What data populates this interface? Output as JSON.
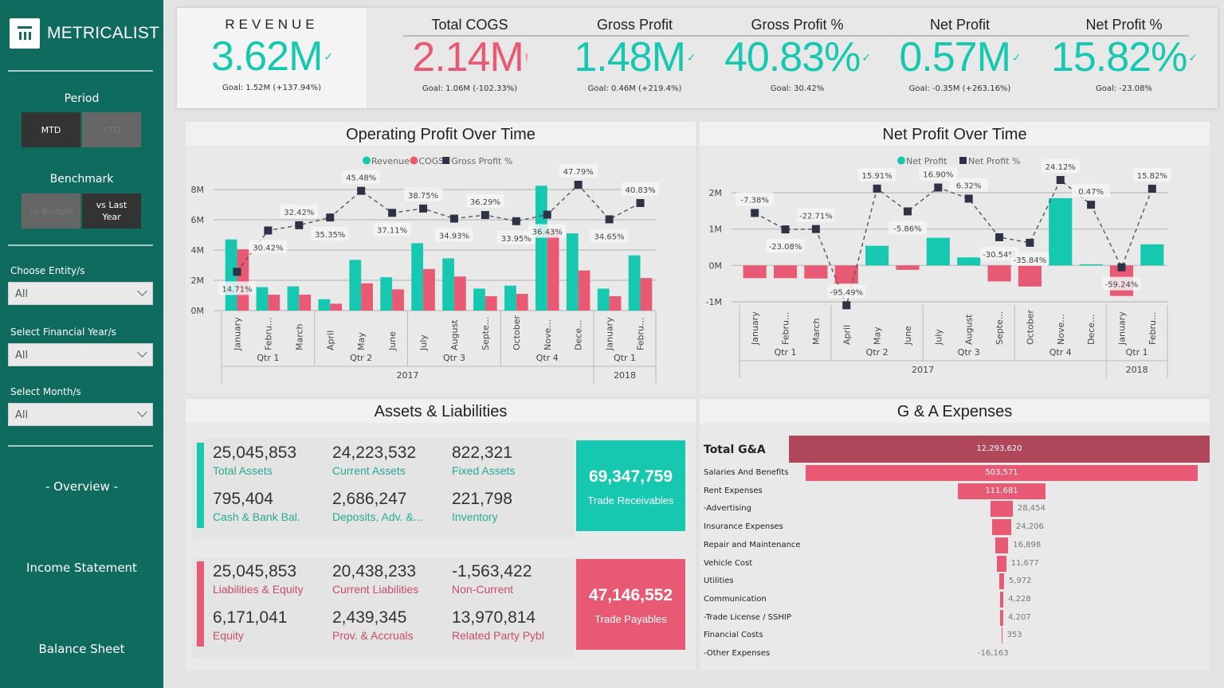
{
  "sidebar": {
    "logo_text": "METRICALIST",
    "period_label": "Period",
    "period_options": [
      "MTD",
      "YTD"
    ],
    "period_selected": "MTD",
    "benchmark_label": "Benchmark",
    "benchmark_options": [
      "vs Budget",
      "vs Last Year"
    ],
    "benchmark_selected": "vs Last Year",
    "filters": [
      {
        "label": "Choose Entity/s",
        "value": "All"
      },
      {
        "label": "Select Financial Year/s",
        "value": "All"
      },
      {
        "label": "Select Month/s",
        "value": "All"
      }
    ],
    "nav": [
      "- Overview -",
      "Income Statement",
      "Balance Sheet"
    ]
  },
  "colors": {
    "sidebar": "#0e6b5e",
    "positive": "#17c8b0",
    "negative": "#e85a74",
    "total": "#b0475a",
    "line": "#2e3245"
  },
  "kpis": [
    {
      "title": "REVENUE",
      "value": "3.62M",
      "icon": "check",
      "goal": "Goal: 1.52M (+137.94%)",
      "status": "good"
    },
    {
      "title": "Total COGS",
      "value": "2.14M",
      "icon": "exclamation",
      "goal": "Goal: 1.06M (-102.33%)",
      "status": "bad"
    },
    {
      "title": "Gross Profit",
      "value": "1.48M",
      "icon": "check",
      "goal": "Goal: 0.46M (+219.4%)",
      "status": "good"
    },
    {
      "title": "Gross Profit %",
      "value": "40.83%",
      "icon": "check",
      "goal": "Goal: 30.42%",
      "status": "good"
    },
    {
      "title": "Net Profit",
      "value": "0.57M",
      "icon": "check",
      "goal": "Goal: -0.35M (+263.16%)",
      "status": "good"
    },
    {
      "title": "Net Profit %",
      "value": "15.82%",
      "icon": "check",
      "goal": "Goal: -23.08%",
      "status": "good"
    }
  ],
  "chart_data": [
    {
      "type": "bar",
      "title": "Operating Profit Over Time",
      "legend": [
        "Revenue",
        "COGS",
        "Gross Profit %"
      ],
      "legend_position": "top",
      "categories": [
        "January",
        "Febru...",
        "March",
        "April",
        "May",
        "June",
        "July",
        "August",
        "Septe...",
        "October",
        "Nove...",
        "Dece...",
        "January",
        "Febru..."
      ],
      "quarters": [
        {
          "label": "Qtr 1",
          "span": 3
        },
        {
          "label": "Qtr 2",
          "span": 3
        },
        {
          "label": "Qtr 3",
          "span": 3
        },
        {
          "label": "Qtr 4",
          "span": 3
        },
        {
          "label": "Qtr 1",
          "span": 2
        }
      ],
      "years": [
        {
          "label": "2017",
          "span": 12
        },
        {
          "label": "2018",
          "span": 2
        }
      ],
      "yticks": [
        "0M",
        "2M",
        "4M",
        "6M",
        "8M"
      ],
      "ylim": [
        0,
        8
      ],
      "grid": true,
      "series": [
        {
          "name": "Revenue",
          "type": "bar",
          "values": [
            4.7,
            1.55,
            1.6,
            0.75,
            3.35,
            2.2,
            4.45,
            3.45,
            1.45,
            1.65,
            8.25,
            5.1,
            1.45,
            3.65
          ]
        },
        {
          "name": "COGS",
          "type": "bar",
          "values": [
            4.05,
            1.05,
            1.05,
            0.45,
            1.8,
            1.4,
            2.75,
            2.25,
            0.95,
            1.1,
            5.25,
            2.65,
            0.95,
            2.15
          ]
        },
        {
          "name": "Gross Profit %",
          "type": "line",
          "values": [
            14.71,
            30.42,
            32.42,
            35.35,
            45.48,
            37.11,
            38.75,
            34.93,
            36.29,
            33.95,
            36.43,
            47.79,
            34.65,
            40.83
          ],
          "labels": [
            "14.71%",
            "30.42%",
            "32.42%",
            "35.35%",
            "45.48%",
            "37.11%",
            "38.75%",
            "34.93%",
            "36.29%",
            "33.95%",
            "36.43%",
            "47.79%",
            "34.65%",
            "40.83%"
          ]
        }
      ]
    },
    {
      "type": "bar",
      "title": "Net Profit Over Time",
      "legend": [
        "Net Profit",
        "Net Profit %"
      ],
      "legend_position": "top",
      "categories": [
        "January",
        "Febru...",
        "March",
        "April",
        "May",
        "June",
        "July",
        "August",
        "Septe...",
        "October",
        "Nove...",
        "Dece...",
        "January",
        "Febru..."
      ],
      "quarters": [
        {
          "label": "Qtr 1",
          "span": 3
        },
        {
          "label": "Qtr 2",
          "span": 3
        },
        {
          "label": "Qtr 3",
          "span": 3
        },
        {
          "label": "Qtr 4",
          "span": 3
        },
        {
          "label": "Qtr 1",
          "span": 2
        }
      ],
      "years": [
        {
          "label": "2017",
          "span": 12
        },
        {
          "label": "2018",
          "span": 2
        }
      ],
      "yticks": [
        "-1M",
        "0M",
        "1M",
        "2M"
      ],
      "ylim": [
        -1,
        2
      ],
      "grid": true,
      "series": [
        {
          "name": "Net Profit",
          "type": "bar",
          "values": [
            -0.35,
            -0.35,
            -0.36,
            -0.5,
            0.54,
            -0.12,
            0.76,
            0.22,
            -0.44,
            -0.58,
            1.85,
            0.03,
            -0.84,
            0.58
          ]
        },
        {
          "name": "Net Profit %",
          "type": "line",
          "values": [
            -7.38,
            -23.08,
            -22.71,
            -95.49,
            15.91,
            -5.86,
            16.9,
            6.32,
            -30.54,
            -35.84,
            24.12,
            0.47,
            -59.24,
            15.82
          ],
          "labels": [
            "-7.38%",
            "-23.08%",
            "-22.71%",
            "-95.49%",
            "15.91%",
            "-5.86%",
            "16.90%",
            "6.32%",
            "-30.54%",
            "-35.84%",
            "24.12%",
            "0.47%",
            "-59.24%",
            "15.82%"
          ]
        }
      ]
    }
  ],
  "assets": {
    "title": "Assets & Liabilities",
    "assets_cells": [
      {
        "value": "25,045,853",
        "label": "Total Assets"
      },
      {
        "value": "24,223,532",
        "label": "Current Assets"
      },
      {
        "value": "822,321",
        "label": "Fixed Assets"
      },
      {
        "value": "795,404",
        "label": "Cash & Bank Bal."
      },
      {
        "value": "2,686,247",
        "label": "Deposits, Adv. &..."
      },
      {
        "value": "221,798",
        "label": "Inventory"
      }
    ],
    "receivables": {
      "value": "69,347,759",
      "label": "Trade Receivables"
    },
    "liab_cells": [
      {
        "value": "25,045,853",
        "label": "Liabilities & Equity"
      },
      {
        "value": "20,438,233",
        "label": "Current Liabilities"
      },
      {
        "value": "-1,563,422",
        "label": "Non-Current"
      },
      {
        "value": "6,171,041",
        "label": "Equity"
      },
      {
        "value": "2,439,345",
        "label": "Prov. & Accruals"
      },
      {
        "value": "13,970,814",
        "label": "Related Party Pybl"
      }
    ],
    "payables": {
      "value": "47,146,552",
      "label": "Trade Payables"
    }
  },
  "ga": {
    "title": "G & A Expenses",
    "total": {
      "label": "Total G&A",
      "value": 12293620,
      "display": "12,293,620"
    },
    "items": [
      {
        "label": "Salaries And Benefits",
        "value": 503571,
        "display": "503,571"
      },
      {
        "label": "Rent Expenses",
        "value": 111681,
        "display": "111,681"
      },
      {
        "label": "-Advertising",
        "value": 28454,
        "display": "28,454"
      },
      {
        "label": "Insurance Expenses",
        "value": 24206,
        "display": "24,206"
      },
      {
        "label": "Repair and Maintenance",
        "value": 16898,
        "display": "16,898"
      },
      {
        "label": "Vehicle Cost",
        "value": 11677,
        "display": "11,677"
      },
      {
        "label": "Utilities",
        "value": 5972,
        "display": "5,972"
      },
      {
        "label": "Communication",
        "value": 4228,
        "display": "4,228"
      },
      {
        "label": "-Trade License / SSHIP",
        "value": 4207,
        "display": "4,207"
      },
      {
        "label": "Financial Costs",
        "value": 353,
        "display": "353"
      },
      {
        "label": "-Other Expenses",
        "value": -16163,
        "display": "-16,163"
      }
    ]
  }
}
